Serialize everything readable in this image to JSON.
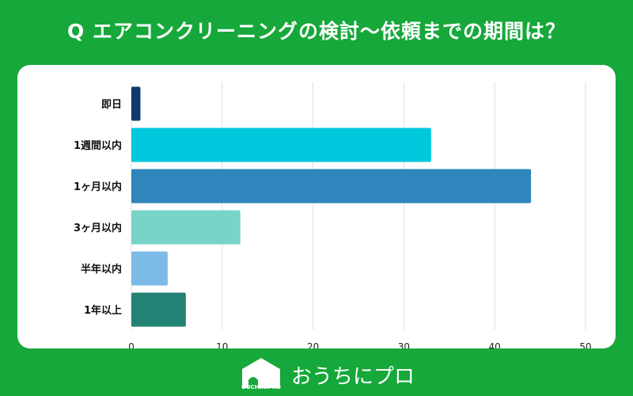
{
  "title": "Q エアコンクリーニングの検討〜依頼までの期間は？",
  "chart_data": {
    "type": "bar",
    "orientation": "horizontal",
    "title": "Q エアコンクリーニングの検討〜依頼までの期間は？",
    "categories": [
      "即日",
      "1週間以内",
      "1ヶ月以内",
      "3ヶ月以内",
      "半年以内",
      "1年以上"
    ],
    "values": [
      1,
      33,
      44,
      12,
      4,
      6
    ],
    "colors": [
      "#0f3a6b",
      "#00c8dc",
      "#2e86bc",
      "#78d4c8",
      "#7cbbe8",
      "#228273"
    ],
    "xlim": [
      0,
      50
    ],
    "xticks": [
      0,
      10,
      20,
      30,
      40,
      50
    ],
    "grid": true,
    "xlabel": "",
    "ylabel": ""
  },
  "footer": {
    "brand": "おうちにプロ",
    "logo_text": "OUCHINiPRO"
  }
}
